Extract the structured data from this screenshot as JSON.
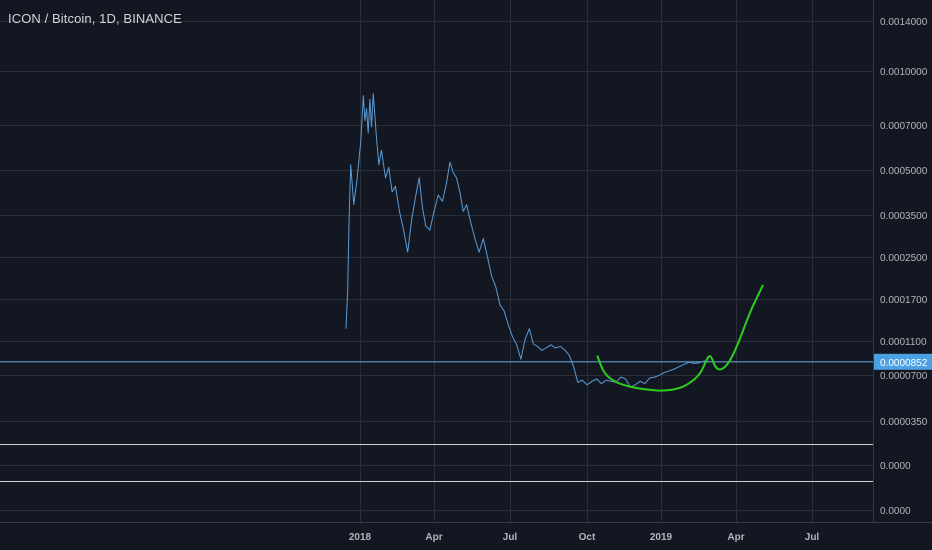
{
  "header": {
    "title": "ICON / Bitcoin, 1D, BINANCE"
  },
  "colors": {
    "background": "#131722",
    "grid": "#2a2e39",
    "line": "#5b9bd5",
    "projection": "#2ecc1d",
    "price_line": "#5b9bd5",
    "current_price_bg": "#4ca1e3",
    "separator": "#cfd2d8"
  },
  "chart_data": {
    "type": "line",
    "title": "ICON / Bitcoin, 1D, BINANCE",
    "xlabel": "",
    "ylabel": "",
    "y_scale": "log",
    "x_tick_labels": [
      "2018",
      "Apr",
      "Jul",
      "Oct",
      "2019",
      "Apr",
      "Jul"
    ],
    "y_tick_labels": [
      "0.0014000",
      "0.0010000",
      "0.0007000",
      "0.0005000",
      "0.0003500",
      "0.0002500",
      "0.0001700",
      "0.0001100",
      "0.0000700",
      "0.0000350"
    ],
    "lower_pane_tick_labels": [
      "0.0000",
      "0.0000"
    ],
    "current_price_label": "0.0000852",
    "current_price": 8.52e-05,
    "grid": true,
    "series": [
      {
        "x": [
          "2017-12-23",
          "2017-12-24",
          "2017-12-25",
          "2017-12-26",
          "2017-12-28",
          "2017-12-30",
          "2018-01-02",
          "2018-01-05",
          "2018-01-07",
          "2018-01-09",
          "2018-01-11",
          "2018-01-13",
          "2018-01-15",
          "2018-01-17",
          "2018-01-19",
          "2018-01-21",
          "2018-01-24",
          "2018-01-27",
          "2018-02-01",
          "2018-02-05",
          "2018-02-09",
          "2018-02-13",
          "2018-02-18",
          "2018-02-23",
          "2018-02-28",
          "2018-03-05",
          "2018-03-10",
          "2018-03-14",
          "2018-03-18",
          "2018-03-22",
          "2018-03-27",
          "2018-04-01",
          "2018-04-06",
          "2018-04-11",
          "2018-04-16",
          "2018-04-20",
          "2018-04-24",
          "2018-04-28",
          "2018-05-02",
          "2018-05-06",
          "2018-05-10",
          "2018-05-15",
          "2018-05-20",
          "2018-05-25",
          "2018-05-30",
          "2018-06-04",
          "2018-06-09",
          "2018-06-14",
          "2018-06-19",
          "2018-06-24",
          "2018-06-29",
          "2018-07-04",
          "2018-07-09",
          "2018-07-14",
          "2018-07-19",
          "2018-07-24",
          "2018-07-29",
          "2018-08-03",
          "2018-08-08",
          "2018-08-13",
          "2018-08-16",
          "2018-08-19",
          "2018-08-24",
          "2018-08-30",
          "2018-09-05",
          "2018-09-10",
          "2018-09-15",
          "2018-09-20",
          "2018-09-25",
          "2018-10-01",
          "2018-10-07",
          "2018-10-13",
          "2018-10-19",
          "2018-10-25",
          "2018-10-31",
          "2018-11-06",
          "2018-11-12",
          "2018-11-18",
          "2018-11-24",
          "2018-11-30",
          "2018-12-06",
          "2018-12-12",
          "2018-12-18",
          "2018-12-24",
          "2018-12-30",
          "2019-01-05",
          "2019-01-11",
          "2019-01-17",
          "2019-01-23",
          "2019-01-29",
          "2019-02-04",
          "2019-02-10",
          "2019-02-16",
          "2019-02-22",
          "2019-02-28"
        ],
        "values": [
          0.000125,
          0.00018,
          0.00034,
          0.00052,
          0.00038,
          0.00046,
          0.00062,
          0.00085,
          0.00072,
          0.00078,
          0.00066,
          0.00083,
          0.00069,
          0.00086,
          0.00075,
          0.00064,
          0.00052,
          0.00058,
          0.00047,
          0.00051,
          0.00042,
          0.00044,
          0.00036,
          0.00031,
          0.00026,
          0.00034,
          0.00041,
          0.00047,
          0.00037,
          0.00032,
          0.00031,
          0.00036,
          0.00041,
          0.00039,
          0.00045,
          0.00053,
          0.00049,
          0.00047,
          0.00042,
          0.00036,
          0.00038,
          0.00033,
          0.00029,
          0.00026,
          0.00029,
          0.00025,
          0.00021,
          0.00019,
          0.00016,
          0.00015,
          0.00013,
          0.000115,
          0.000105,
          8.8e-05,
          0.000112,
          0.000125,
          0.000106,
          0.000103,
          9.8e-05,
          0.000101,
          0.000103,
          0.000105,
          0.000101,
          0.000103,
          9.8e-05,
          9.2e-05,
          7.9e-05,
          6.2e-05,
          6.4e-05,
          6e-05,
          6.3e-05,
          6.5e-05,
          6.1e-05,
          6.4e-05,
          6.3e-05,
          6.2e-05,
          6.7e-05,
          6.5e-05,
          5.8e-05,
          6e-05,
          6.3e-05,
          6.1e-05,
          6.6e-05,
          6.7e-05,
          6.9e-05,
          7.2e-05,
          7.4e-05,
          7.6e-05,
          7.9e-05,
          8.2e-05,
          8.5e-05,
          8.3e-05,
          8.4e-05,
          8.6e-05,
          8.52e-05
        ]
      },
      {
        "name": "",
        "x": [
          "2018-10-14",
          "2018-10-22",
          "2018-11-05",
          "2018-11-25",
          "2018-12-15",
          "2019-01-04",
          "2019-01-24",
          "2019-02-08",
          "2019-02-18",
          "2019-02-23",
          "2019-03-01",
          "2019-03-07",
          "2019-03-14",
          "2019-03-24",
          "2019-04-05",
          "2019-04-18",
          "2019-05-03"
        ],
        "values": [
          9.1e-05,
          7.1e-05,
          6.2e-05,
          5.8e-05,
          5.6e-05,
          5.5e-05,
          5.7e-05,
          6.3e-05,
          7.2e-05,
          8.4e-05,
          9.47e-05,
          7.75e-05,
          7.45e-05,
          8.4e-05,
          0.00011,
          0.00015,
          0.000192
        ]
      }
    ]
  }
}
